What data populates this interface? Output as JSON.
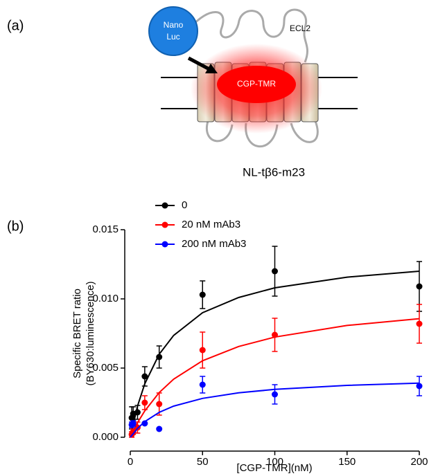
{
  "figure": {
    "panel_labels": [
      "(a)",
      "(b)"
    ],
    "diagram": {
      "nanoluc": [
        "Nano",
        "Luc"
      ],
      "loop_label": "ECL2",
      "ligand": "CGP-TMR",
      "construct": "NL-tβ6-m23"
    }
  },
  "chart_data": {
    "type": "scatter",
    "x_label": "[CGP-TMR](nM)",
    "y_label": [
      "Specific BRET ratio",
      "(BY630:luminescence)"
    ],
    "xlim": [
      0,
      200
    ],
    "xticks": [
      0,
      50,
      100,
      150,
      200
    ],
    "ylim": [
      0,
      0.015
    ],
    "yticks": [
      {
        "value": 0,
        "label": "0.000"
      },
      {
        "value": 0.005,
        "label": "0.005"
      },
      {
        "value": 0.01,
        "label": "0.010"
      },
      {
        "value": 0.015,
        "label": "0.015"
      }
    ],
    "series": [
      {
        "name": "0",
        "color": "#000000",
        "x": [
          1,
          2,
          5,
          10,
          20,
          50,
          100,
          200
        ],
        "values": [
          0.0014,
          0.0017,
          0.0018,
          0.0044,
          0.0058,
          0.0103,
          0.012,
          0.0109
        ],
        "errors": [
          0.0008,
          0.0005,
          0.0005,
          0.0007,
          0.0008,
          0.001,
          0.0018,
          0.0018
        ],
        "fit": {
          "x": [
            0,
            5,
            10,
            20,
            30,
            50,
            75,
            100,
            150,
            200
          ],
          "values": [
            0,
            0.00225,
            0.00386,
            0.006,
            0.00736,
            0.009,
            0.0101,
            0.0108,
            0.01157,
            0.012
          ]
        }
      },
      {
        "name": "20 nM mAb3",
        "color": "#ff0000",
        "x": [
          1,
          2,
          5,
          10,
          20,
          50,
          100,
          200
        ],
        "values": [
          0.0002,
          0.0004,
          0.0007,
          0.0025,
          0.0024,
          0.0063,
          0.0074,
          0.0082
        ],
        "errors": [
          0.0002,
          0.0002,
          0.0004,
          0.0005,
          0.0008,
          0.0013,
          0.0012,
          0.0014
        ],
        "fit": {
          "x": [
            0,
            5,
            10,
            20,
            30,
            50,
            75,
            100,
            150,
            200
          ],
          "values": [
            0,
            0.00105,
            0.0019,
            0.00323,
            0.0042,
            0.00553,
            0.00656,
            0.00724,
            0.00808,
            0.00857
          ]
        }
      },
      {
        "name": "200 nM mAb3",
        "color": "#0000ff",
        "x": [
          1,
          2,
          10,
          20,
          50,
          100,
          200
        ],
        "values": [
          0.0009,
          0.001,
          0.001,
          0.0006,
          0.0038,
          0.0031,
          0.0037
        ],
        "errors": [
          0.0002,
          0.0002,
          0,
          0,
          0.0006,
          0.0007,
          0.0007
        ],
        "fit": {
          "x": [
            0,
            5,
            10,
            20,
            30,
            50,
            75,
            100,
            150,
            200
          ],
          "values": [
            0,
            0.00064,
            0.00113,
            0.0018,
            0.00225,
            0.00281,
            0.00321,
            0.00346,
            0.00375,
            0.00391
          ]
        }
      }
    ]
  }
}
